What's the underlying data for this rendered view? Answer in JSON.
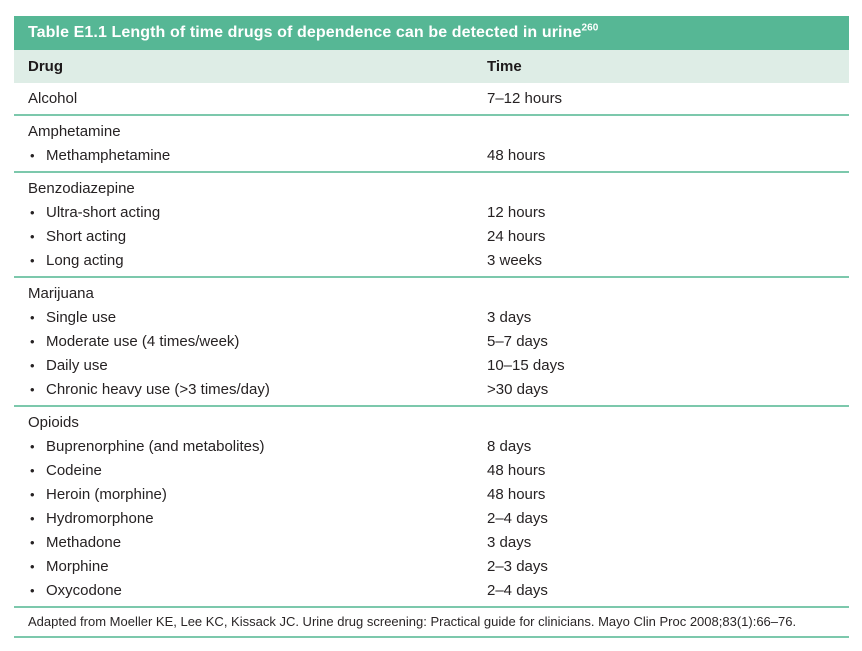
{
  "table": {
    "title": "Table E1.1 Length of time drugs of dependence can be detected in urine",
    "title_reference": "260",
    "columns": {
      "drug": "Drug",
      "time": "Time"
    },
    "bullet_glyph": "•",
    "sections": [
      {
        "rows": [
          {
            "bullet": false,
            "label": "Alcohol",
            "time": "7–12 hours"
          }
        ]
      },
      {
        "rows": [
          {
            "bullet": false,
            "label": "Amphetamine",
            "time": ""
          },
          {
            "bullet": true,
            "label": "Methamphetamine",
            "time": "48 hours"
          }
        ]
      },
      {
        "rows": [
          {
            "bullet": false,
            "label": "Benzodiazepine",
            "time": ""
          },
          {
            "bullet": true,
            "label": "Ultra-short acting",
            "time": "12 hours"
          },
          {
            "bullet": true,
            "label": "Short acting",
            "time": "24 hours"
          },
          {
            "bullet": true,
            "label": "Long acting",
            "time": "3 weeks"
          }
        ]
      },
      {
        "rows": [
          {
            "bullet": false,
            "label": "Marijuana",
            "time": ""
          },
          {
            "bullet": true,
            "label": "Single use",
            "time": "3 days"
          },
          {
            "bullet": true,
            "label": "Moderate use (4 times/week)",
            "time": "5–7 days"
          },
          {
            "bullet": true,
            "label": "Daily use",
            "time": "10–15 days"
          },
          {
            "bullet": true,
            "label": "Chronic heavy use (>3 times/day)",
            "time": ">30 days"
          }
        ]
      },
      {
        "rows": [
          {
            "bullet": false,
            "label": "Opioids",
            "time": ""
          },
          {
            "bullet": true,
            "label": "Buprenorphine (and metabolites)",
            "time": "8 days"
          },
          {
            "bullet": true,
            "label": "Codeine",
            "time": "48 hours"
          },
          {
            "bullet": true,
            "label": "Heroin (morphine)",
            "time": "48 hours"
          },
          {
            "bullet": true,
            "label": "Hydromorphone",
            "time": "2–4 days"
          },
          {
            "bullet": true,
            "label": "Methadone",
            "time": "3 days"
          },
          {
            "bullet": true,
            "label": "Morphine",
            "time": "2–3 days"
          },
          {
            "bullet": true,
            "label": "Oxycodone",
            "time": "2–4 days"
          }
        ]
      }
    ],
    "footnote": "Adapted from Moeller KE, Lee KC, Kissack JC. Urine drug screening: Practical guide for clinicians. Mayo Clin Proc 2008;83(1):66–76."
  },
  "colors": {
    "title_bar_bg": "#56b795",
    "title_text": "#ffffff",
    "column_header_bg": "#deede6",
    "divider": "#7cc8ac",
    "body_text": "#262223"
  }
}
